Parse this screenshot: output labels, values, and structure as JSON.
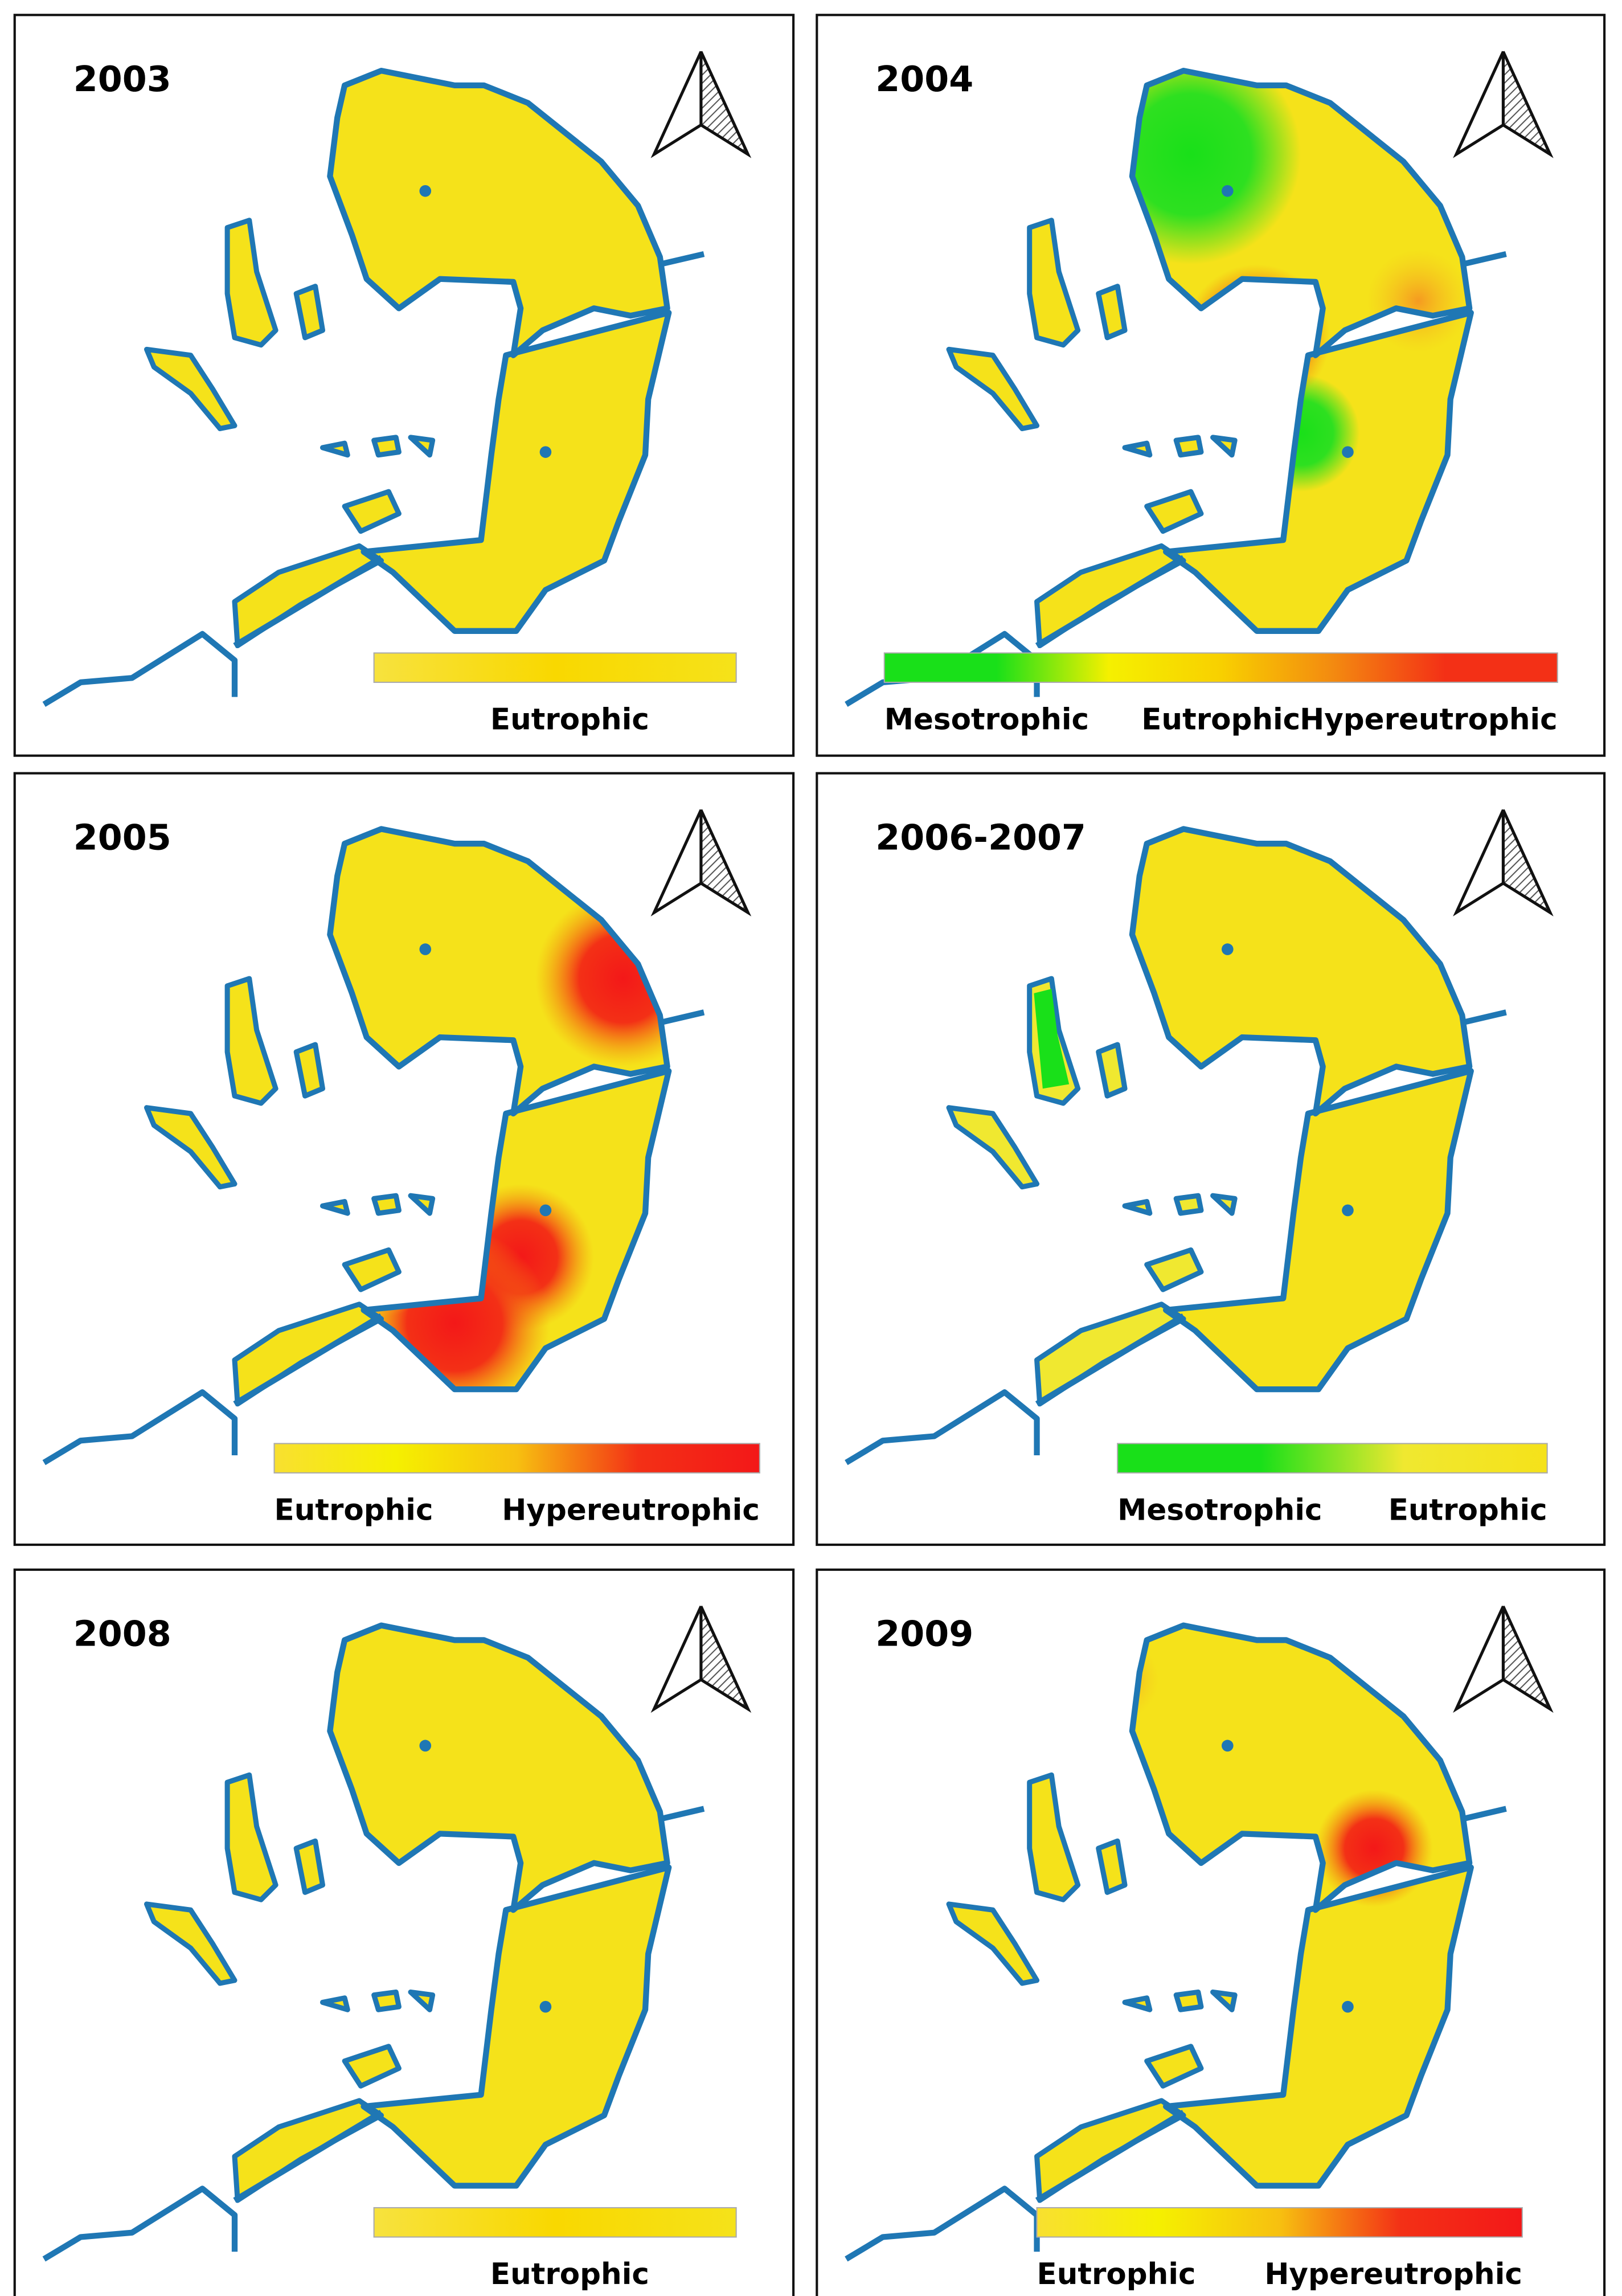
{
  "panels": [
    {
      "title": "2003",
      "legend": [
        "Eutrophic"
      ],
      "legend_colors": [
        "#f7e23e",
        "#f9d800",
        "#f5e21a"
      ]
    },
    {
      "title": "2004",
      "legend": [
        "Mesotrophic",
        "Eutrophic",
        "Hypereutrophic"
      ],
      "legend_colors": [
        "#19e019",
        "#19e019",
        "#f5f000",
        "#f8d000",
        "#f38a10",
        "#f33016",
        "#f33016"
      ]
    },
    {
      "title": "2005",
      "legend": [
        "Eutrophic",
        "Hypereutrophic"
      ],
      "legend_colors": [
        "#f8e030",
        "#f5f000",
        "#f7c010",
        "#f33016",
        "#f31818"
      ]
    },
    {
      "title": "2006-2007",
      "legend": [
        "Mesotrophic",
        "Eutrophic"
      ],
      "legend_colors": [
        "#19e019",
        "#19e019",
        "#f0e830",
        "#f5e21a"
      ]
    },
    {
      "title": "2008",
      "legend": [
        "Eutrophic"
      ],
      "legend_colors": [
        "#f7e23e",
        "#f9d800",
        "#f5e21a"
      ]
    },
    {
      "title": "2009",
      "legend": [
        "Eutrophic",
        "Hypereutrophic"
      ],
      "legend_colors": [
        "#f8e030",
        "#f5f000",
        "#f7c010",
        "#f33016",
        "#f31818"
      ]
    }
  ]
}
